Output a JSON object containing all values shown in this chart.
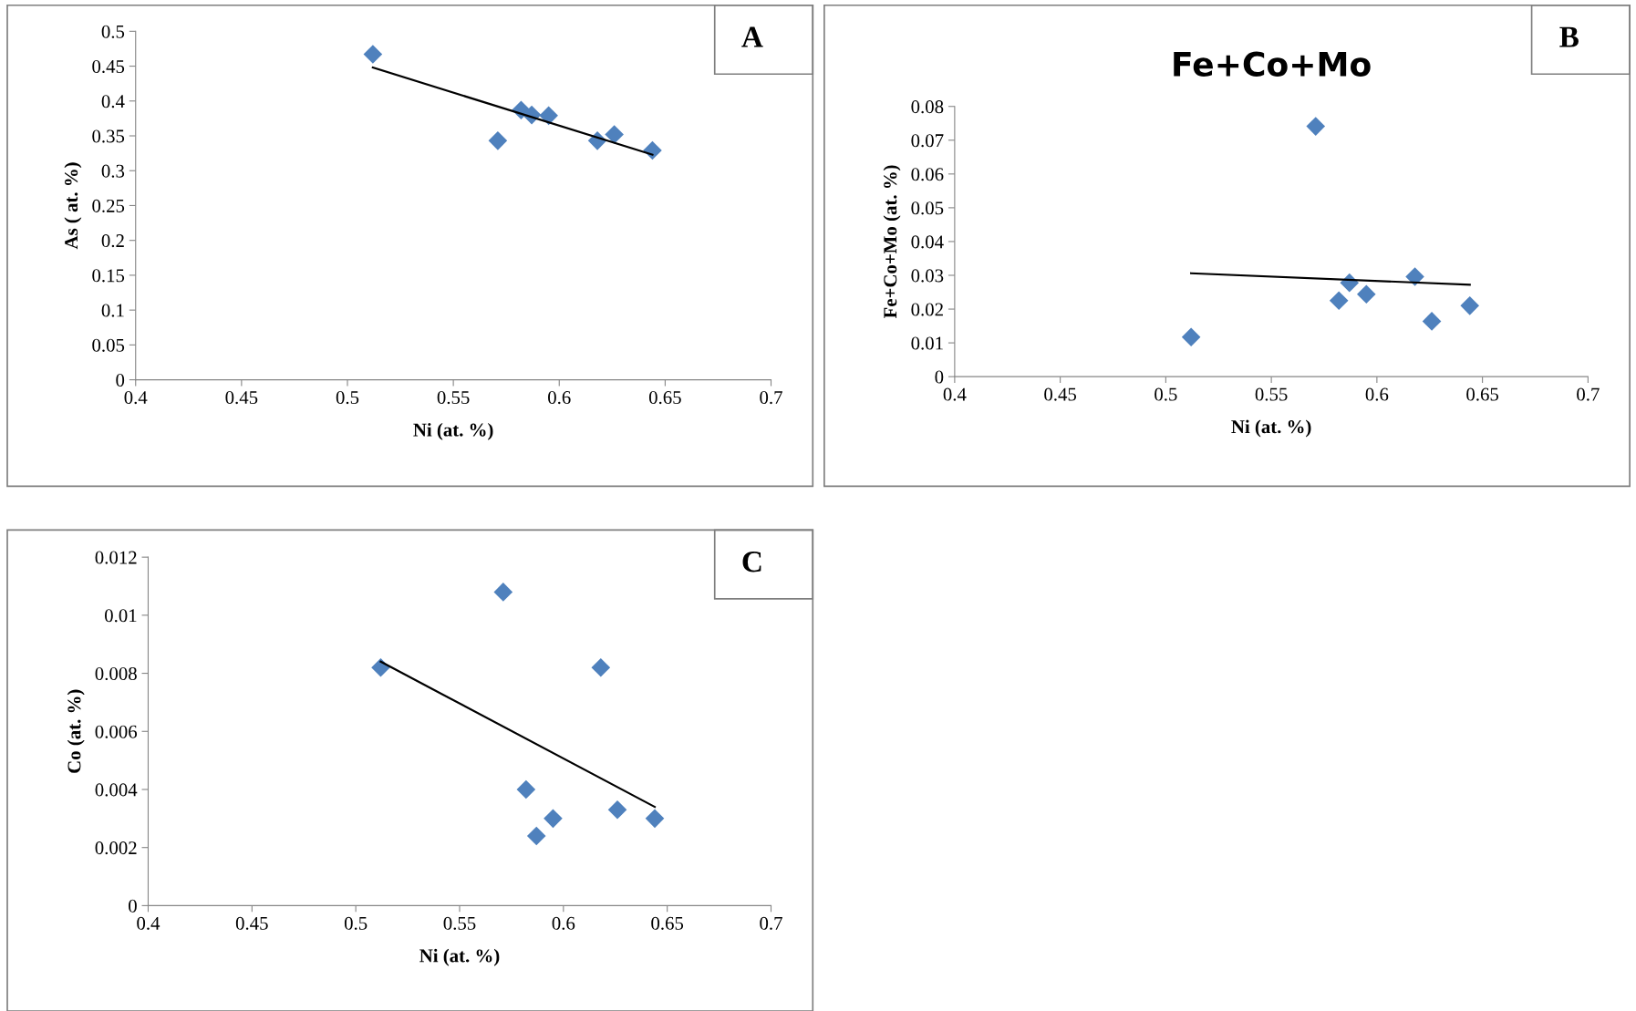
{
  "chart_data": [
    {
      "type": "scatter",
      "xlabel": "Ni (at. %)",
      "ylabel": "As ( at. %)",
      "annotations": [
        "A"
      ],
      "xlim": [
        0.4,
        0.7
      ],
      "xticks": [
        0.4,
        0.45,
        0.5,
        0.55,
        0.6,
        0.65,
        0.7
      ],
      "ylim": [
        0,
        0.5
      ],
      "yticks": [
        0,
        0.05,
        0.1,
        0.15,
        0.2,
        0.25,
        0.3,
        0.35,
        0.4,
        0.45,
        0.5
      ],
      "marker": "diamond",
      "grid": false,
      "series": [
        {
          "type": "scatter",
          "color": "#4f81bd",
          "x": [
            0.512,
            0.571,
            0.582,
            0.587,
            0.595,
            0.618,
            0.626,
            0.644
          ],
          "values": [
            0.467,
            0.343,
            0.387,
            0.38,
            0.379,
            0.343,
            0.352,
            0.329
          ]
        },
        {
          "type": "line",
          "marker": "none",
          "color": "#000000",
          "x": [
            0.512,
            0.644
          ],
          "values": [
            0.448,
            0.323
          ]
        }
      ]
    },
    {
      "type": "scatter",
      "title": "Fe+Co+Mo",
      "xlabel": "Ni (at. %)",
      "ylabel": "Fe+Co+Mo (at. %)",
      "annotations": [
        "B"
      ],
      "xlim": [
        0.4,
        0.7
      ],
      "xticks": [
        0.4,
        0.45,
        0.5,
        0.55,
        0.6,
        0.65,
        0.7
      ],
      "ylim": [
        0,
        0.08
      ],
      "yticks": [
        0,
        0.01,
        0.02,
        0.03,
        0.04,
        0.05,
        0.06,
        0.07,
        0.08
      ],
      "marker": "diamond",
      "grid": false,
      "series": [
        {
          "type": "scatter",
          "color": "#4f81bd",
          "x": [
            0.512,
            0.571,
            0.582,
            0.587,
            0.595,
            0.618,
            0.626,
            0.644
          ],
          "values": [
            0.0117,
            0.0741,
            0.0225,
            0.0278,
            0.0244,
            0.0296,
            0.0164,
            0.021
          ]
        },
        {
          "type": "line",
          "marker": "none",
          "color": "#000000",
          "x": [
            0.512,
            0.644
          ],
          "values": [
            0.0306,
            0.0272
          ]
        }
      ]
    },
    {
      "type": "scatter",
      "xlabel": "Ni (at. %)",
      "ylabel": "Co (at. %)",
      "annotations": [
        "C"
      ],
      "xlim": [
        0.4,
        0.7
      ],
      "xticks": [
        0.4,
        0.45,
        0.5,
        0.55,
        0.6,
        0.65,
        0.7
      ],
      "ylim": [
        0,
        0.012
      ],
      "yticks": [
        0,
        0.002,
        0.004,
        0.006,
        0.008,
        0.01,
        0.012
      ],
      "marker": "diamond",
      "grid": false,
      "series": [
        {
          "type": "scatter",
          "color": "#4f81bd",
          "x": [
            0.512,
            0.571,
            0.582,
            0.587,
            0.595,
            0.618,
            0.626,
            0.644
          ],
          "values": [
            0.0082,
            0.0108,
            0.004,
            0.0024,
            0.003,
            0.0082,
            0.0033,
            0.003
          ]
        },
        {
          "type": "line",
          "marker": "none",
          "color": "#000000",
          "x": [
            0.512,
            0.644
          ],
          "values": [
            0.0084,
            0.0034
          ]
        }
      ]
    }
  ]
}
